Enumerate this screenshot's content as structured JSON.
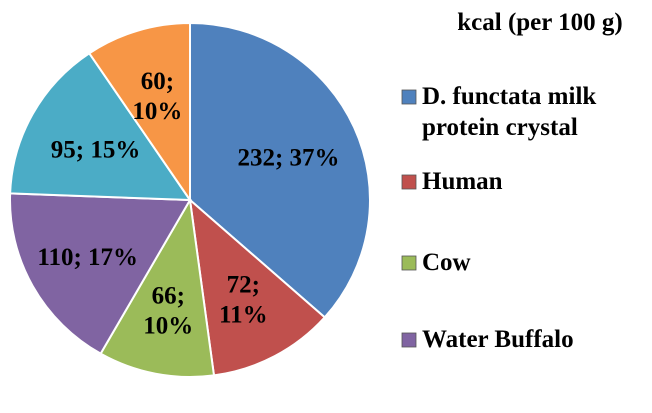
{
  "chart_data": {
    "type": "pie",
    "title": "kcal (per 100 g)",
    "slices": [
      {
        "name": "D. functata milk protein crystal",
        "value": 232,
        "percent": 37,
        "label": "232; 37%",
        "color": "#4f81bd"
      },
      {
        "name": "Human",
        "value": 72,
        "percent": 11,
        "label": "72; 11%",
        "color": "#c0504d"
      },
      {
        "name": "Cow",
        "value": 66,
        "percent": 10,
        "label": "66; 10%",
        "color": "#9bbb59"
      },
      {
        "name": "Water Buffalo",
        "value": 110,
        "percent": 17,
        "label": "110; 17%",
        "color": "#8064a2"
      },
      {
        "name": "",
        "value": 95,
        "percent": 15,
        "label": "95; 15%",
        "color": "#4bacc6"
      },
      {
        "name": "",
        "value": 60,
        "percent": 10,
        "label": "60; 10%",
        "color": "#f79646"
      }
    ],
    "legend": [
      {
        "label_lines": [
          "D. functata milk",
          "protein crystal"
        ],
        "color": "#4f81bd"
      },
      {
        "label_lines": [
          "Human"
        ],
        "color": "#c0504d"
      },
      {
        "label_lines": [
          "Cow"
        ],
        "color": "#9bbb59"
      },
      {
        "label_lines": [
          "Water Buffalo"
        ],
        "color": "#8064a2"
      }
    ],
    "legend_position": "right"
  }
}
